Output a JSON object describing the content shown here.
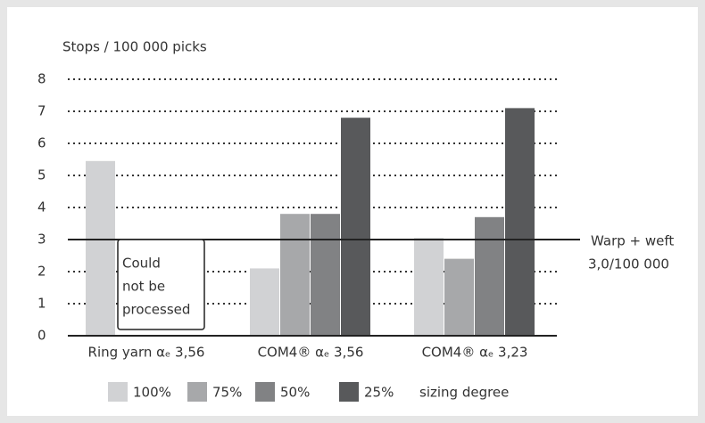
{
  "chart_data": {
    "type": "bar",
    "y_label": "Stops / 100 000 picks",
    "categories": [
      "Ring yarn αₑ 3,56",
      "COM4® αₑ 3,56",
      "COM4® αₑ 3,23"
    ],
    "series": [
      {
        "name": "100%",
        "color": "#d1d2d4",
        "values": [
          5.45,
          2.1,
          3.05
        ]
      },
      {
        "name": "75%",
        "color": "#a7a8aa",
        "values": [
          null,
          3.8,
          2.4
        ]
      },
      {
        "name": "50%",
        "color": "#818284",
        "values": [
          null,
          3.8,
          3.7
        ]
      },
      {
        "name": "25%",
        "color": "#58595b",
        "values": [
          null,
          6.8,
          7.1
        ]
      }
    ],
    "legend_suffix": "sizing degree",
    "annotation": [
      "Could",
      "not be",
      "processed"
    ],
    "reference_line": {
      "value": 3,
      "label": [
        "Warp + weft",
        "3,0/100 000"
      ]
    },
    "ylim": [
      0,
      8
    ],
    "yticks": [
      0,
      1,
      2,
      3,
      4,
      5,
      6,
      7,
      8
    ],
    "grid": true
  }
}
